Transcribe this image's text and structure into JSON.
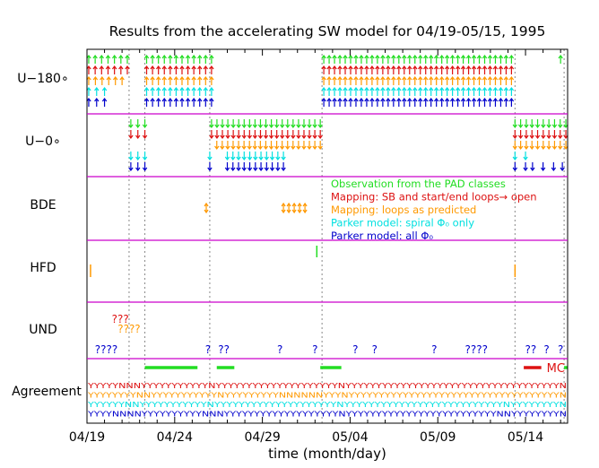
{
  "chart_data": {
    "type": "timeline",
    "title": "Results from the accelerating SW model for 04/19-05/15, 1995",
    "xlabel": "time (month/day)",
    "x_range_days": [
      0,
      27.4
    ],
    "x_ticks": [
      {
        "label": "04/19",
        "day": 0
      },
      {
        "label": "04/24",
        "day": 5
      },
      {
        "label": "04/29",
        "day": 10
      },
      {
        "label": "05/04",
        "day": 15
      },
      {
        "label": "05/09",
        "day": 20
      },
      {
        "label": "05/14",
        "day": 25
      }
    ],
    "panels": [
      "U−180∘",
      "U−0∘",
      "BDE",
      "HFD",
      "UND",
      "Agreement"
    ],
    "colors": {
      "observation": "#22dd22",
      "mapping_sb": "#dd1111",
      "mapping_loops": "#ff9900",
      "parker_spiral": "#00e0e0",
      "parker_all": "#0000cc",
      "panel_divider": "#cc00cc",
      "event_line": "#888888"
    },
    "legend": [
      {
        "label": "Observation from the PAD classes",
        "color": "#22dd22"
      },
      {
        "label": "Mapping: SB and start/end loops→ open",
        "color": "#dd1111"
      },
      {
        "label": "Mapping: loops as predicted",
        "color": "#ff9900"
      },
      {
        "label": "Parker model: spiral Φ₀ only",
        "color": "#00e0e0"
      },
      {
        "label": "Parker model: all Φ₀",
        "color": "#0000cc"
      }
    ],
    "event_lines_days": [
      2.4,
      3.3,
      7.0,
      13.4,
      24.4,
      27.2
    ],
    "u180_intervals": [
      {
        "row": 0,
        "ranges": [
          [
            0.1,
            2.3
          ],
          [
            3.4,
            7.1
          ],
          [
            13.5,
            24.2
          ],
          [
            27.0,
            27.3
          ]
        ]
      },
      {
        "row": 1,
        "ranges": [
          [
            0.1,
            2.3
          ],
          [
            3.4,
            7.1
          ],
          [
            13.5,
            24.2
          ]
        ]
      },
      {
        "row": 2,
        "ranges": [
          [
            0.1,
            2.0
          ],
          [
            3.4,
            7.1
          ],
          [
            13.5,
            24.2
          ]
        ]
      },
      {
        "row": 3,
        "ranges": [
          [
            0.1,
            1.0
          ],
          [
            3.4,
            7.1
          ],
          [
            13.5,
            24.2
          ]
        ]
      },
      {
        "row": 4,
        "ranges": [
          [
            0.1,
            1.0
          ],
          [
            3.4,
            7.1
          ],
          [
            13.5,
            24.2
          ]
        ]
      }
    ],
    "u0_intervals": [
      {
        "row": 0,
        "ranges": [
          [
            2.5,
            3.3
          ],
          [
            7.1,
            13.3
          ],
          [
            24.4,
            27.3
          ]
        ]
      },
      {
        "row": 1,
        "ranges": [
          [
            2.5,
            3.3
          ],
          [
            7.1,
            13.3
          ],
          [
            24.4,
            27.3
          ]
        ]
      },
      {
        "row": 2,
        "ranges": [
          [
            7.4,
            13.3
          ],
          [
            24.4,
            27.3
          ]
        ]
      },
      {
        "row": 3,
        "ranges": [
          [
            2.5,
            3.3
          ],
          [
            7.0,
            7.1
          ],
          [
            8.0,
            11.2
          ],
          [
            24.4,
            25.0
          ]
        ]
      },
      {
        "row": 4,
        "ranges": [
          [
            2.5,
            3.3
          ],
          [
            7.0,
            7.1
          ],
          [
            8.0,
            11.2
          ],
          [
            24.4,
            25.0
          ],
          [
            25.4,
            25.5
          ],
          [
            26.0,
            26.1
          ],
          [
            26.6,
            26.7
          ],
          [
            27.1,
            27.2
          ]
        ]
      }
    ],
    "bde_events": [
      {
        "day": 6.8,
        "count": 1,
        "color": "orange"
      },
      {
        "day": 11.2,
        "count": 5,
        "color": "orange"
      }
    ],
    "hfd_events": [
      {
        "day": 0.1,
        "color": "orange"
      },
      {
        "day": 13.0,
        "color": "green"
      },
      {
        "day": 24.3,
        "color": "orange"
      }
    ],
    "und_marks": [
      {
        "text": "???",
        "color": "red",
        "day": 1.9
      },
      {
        "text": "????",
        "color": "orange",
        "day": 2.4
      },
      {
        "text": "????",
        "color": "blue",
        "day": 1.1
      },
      {
        "text": "?",
        "color": "blue",
        "day": 6.9
      },
      {
        "text": "??",
        "color": "blue",
        "day": 7.8
      },
      {
        "text": "?",
        "color": "blue",
        "day": 11.0
      },
      {
        "text": "?",
        "color": "blue",
        "day": 13.0
      },
      {
        "text": "?",
        "color": "blue",
        "day": 15.3
      },
      {
        "text": "?",
        "color": "blue",
        "day": 16.4
      },
      {
        "text": "?",
        "color": "blue",
        "day": 19.8
      },
      {
        "text": "????",
        "color": "blue",
        "day": 22.2
      },
      {
        "text": "??",
        "color": "blue",
        "day": 25.3
      },
      {
        "text": "?",
        "color": "blue",
        "day": 26.2
      },
      {
        "text": "?",
        "color": "blue",
        "day": 27.0
      }
    ],
    "green_bars_days": [
      [
        3.3,
        6.3
      ],
      [
        7.4,
        8.4
      ],
      [
        13.3,
        14.5
      ],
      [
        27.2,
        27.4
      ]
    ],
    "mc_bar_days": [
      24.9,
      25.9
    ],
    "mc_label": "MC",
    "agreement_rows": [
      {
        "color": "red",
        "codes": "YYYYYNNNYYYYYYYYYYYNYYYYYYYYYYYYYYYYYYYYNYYYYYYYYYYYYYYYYYYYYYYYYYYYYYYYYYYYN"
      },
      {
        "color": "orange",
        "codes": "YYYYYYYYNNYYYYYYYYYYYNYYYYYYYYYNNNNNNYYYNYYYYYYYYYYYYYYYYYYYYYYYYYYYYYYYYYYYN"
      },
      {
        "color": "cyan",
        "codes": "YYYYYYNNYYYYYYYYYYYNYYYYYYYYYYYYYYYYYYYYNYYYYYYYYYYYYYYYYYYYYYYYYYYNYYYYYYYYN"
      },
      {
        "color": "blue",
        "codes": "YYYYNNNNYYYYYYYYYYNNNYYYYYYYYYYYYYYYYYYYNYYYYYYYYYYYYYYYYYYYYYYYYYNNYYYYYYYYN"
      }
    ]
  }
}
